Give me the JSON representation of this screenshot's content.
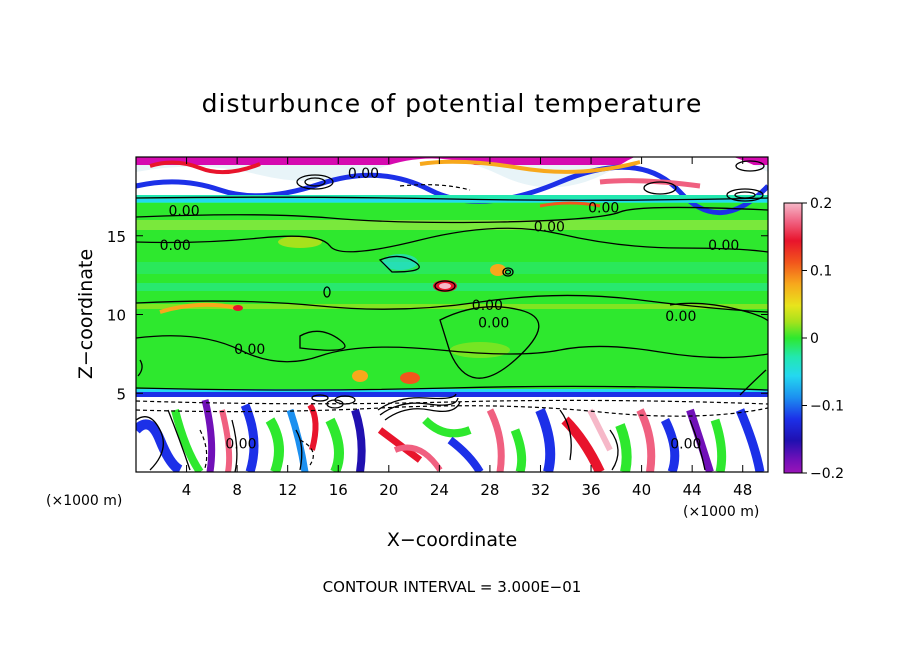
{
  "chart_data": {
    "type": "heatmap",
    "title": "disturbunce of potential temperature",
    "xlabel": "X−coordinate",
    "ylabel": "Z−coordinate",
    "x_unit_left": "(×1000 m)",
    "x_unit_right": "(×1000 m)",
    "xlim": [
      0,
      50
    ],
    "ylim": [
      0,
      20
    ],
    "x_ticks": [
      4,
      8,
      12,
      16,
      20,
      24,
      28,
      32,
      36,
      40,
      44,
      48
    ],
    "x_tick_labels": [
      "4",
      "8",
      "12",
      "16",
      "20",
      "24",
      "28",
      "32",
      "36",
      "40",
      "44",
      "48"
    ],
    "y_ticks": [
      5,
      10,
      15
    ],
    "y_tick_labels": [
      "5",
      "10",
      "15"
    ],
    "colorbar": {
      "range": [
        -0.2,
        0.2
      ],
      "ticks": [
        0.2,
        0.1,
        0,
        -0.1,
        -0.2
      ],
      "tick_labels": [
        "0.2",
        "0.1",
        "0",
        "−0.1",
        "−0.2"
      ]
    },
    "contour_labels": [
      {
        "x": 18,
        "y": 19.0,
        "text": "0.00"
      },
      {
        "x": 3.8,
        "y": 16.6,
        "text": "0.00"
      },
      {
        "x": 3.1,
        "y": 14.4,
        "text": "0.00"
      },
      {
        "x": 37,
        "y": 16.8,
        "text": "0.00"
      },
      {
        "x": 32.7,
        "y": 15.6,
        "text": "0.00"
      },
      {
        "x": 46.5,
        "y": 14.4,
        "text": "0.00"
      },
      {
        "x": 27.8,
        "y": 10.6,
        "text": "0.00"
      },
      {
        "x": 28.3,
        "y": 9.5,
        "text": "0.00"
      },
      {
        "x": 43.1,
        "y": 9.9,
        "text": "0.00"
      },
      {
        "x": 9.0,
        "y": 7.8,
        "text": "0.00"
      },
      {
        "x": 43.5,
        "y": 1.8,
        "text": "0.00"
      },
      {
        "x": 8.3,
        "y": 1.8,
        "text": "0.00"
      }
    ],
    "footer": "CONTOUR INTERVAL = 3.000E−01"
  }
}
